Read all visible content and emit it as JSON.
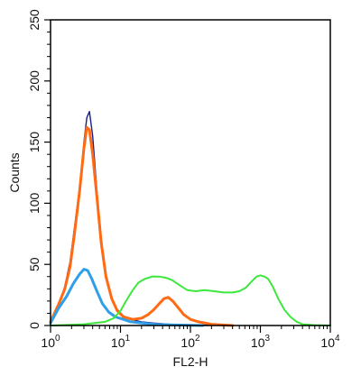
{
  "chart_data": {
    "type": "line",
    "title": "",
    "xlabel": "FL2-H",
    "ylabel": "Counts",
    "xscale": "log",
    "xlim": [
      1,
      10000
    ],
    "ylim": [
      0,
      250
    ],
    "grid": false,
    "x_ticks": [
      {
        "value": 1,
        "base": "10",
        "exp": "0"
      },
      {
        "value": 10,
        "base": "10",
        "exp": "1"
      },
      {
        "value": 100,
        "base": "10",
        "exp": "2"
      },
      {
        "value": 1000,
        "base": "10",
        "exp": "3"
      },
      {
        "value": 10000,
        "base": "10",
        "exp": "4"
      }
    ],
    "y_ticks": [
      {
        "value": 0,
        "label": "0"
      },
      {
        "value": 50,
        "label": "50"
      },
      {
        "value": 100,
        "label": "100"
      },
      {
        "value": 150,
        "label": "150"
      },
      {
        "value": 200,
        "label": "200"
      },
      {
        "value": 250,
        "label": "250"
      }
    ],
    "series": [
      {
        "color": "#1a1f8c",
        "width": 1.4,
        "points": [
          [
            1,
            2
          ],
          [
            1.3,
            15
          ],
          [
            1.6,
            32
          ],
          [
            1.9,
            52
          ],
          [
            2.2,
            80
          ],
          [
            2.6,
            112
          ],
          [
            3.0,
            150
          ],
          [
            3.3,
            170
          ],
          [
            3.6,
            175
          ],
          [
            4.0,
            155
          ],
          [
            4.6,
            110
          ],
          [
            5.3,
            72
          ],
          [
            6.2,
            42
          ],
          [
            7.5,
            22
          ],
          [
            9,
            13
          ],
          [
            11,
            8
          ],
          [
            14,
            5
          ],
          [
            20,
            3
          ],
          [
            30,
            2
          ],
          [
            50,
            1
          ],
          [
            100,
            0.5
          ],
          [
            400,
            0
          ]
        ]
      },
      {
        "color": "#ff6a12",
        "width": 3,
        "points": [
          [
            1,
            3
          ],
          [
            1.3,
            17
          ],
          [
            1.6,
            30
          ],
          [
            1.9,
            48
          ],
          [
            2.2,
            75
          ],
          [
            2.6,
            110
          ],
          [
            3.0,
            145
          ],
          [
            3.3,
            162
          ],
          [
            3.6,
            160
          ],
          [
            4.0,
            140
          ],
          [
            4.6,
            105
          ],
          [
            5.3,
            68
          ],
          [
            6.2,
            40
          ],
          [
            7.5,
            22
          ],
          [
            9,
            12
          ],
          [
            11,
            7
          ],
          [
            15,
            5
          ],
          [
            20,
            6
          ],
          [
            25,
            9
          ],
          [
            30,
            13
          ],
          [
            36,
            18
          ],
          [
            42,
            22
          ],
          [
            48,
            23
          ],
          [
            56,
            20
          ],
          [
            66,
            15
          ],
          [
            80,
            9
          ],
          [
            100,
            5
          ],
          [
            130,
            3
          ],
          [
            200,
            1
          ],
          [
            400,
            0
          ]
        ]
      },
      {
        "color": "#2f9fe8",
        "width": 3,
        "points": [
          [
            1,
            2
          ],
          [
            1.3,
            14
          ],
          [
            1.7,
            24
          ],
          [
            2.1,
            34
          ],
          [
            2.6,
            42
          ],
          [
            3.0,
            46
          ],
          [
            3.4,
            45
          ],
          [
            3.9,
            38
          ],
          [
            4.6,
            28
          ],
          [
            5.5,
            18
          ],
          [
            6.8,
            11
          ],
          [
            8.5,
            7
          ],
          [
            11,
            5
          ],
          [
            14,
            3
          ],
          [
            20,
            2
          ],
          [
            30,
            1
          ],
          [
            50,
            0.5
          ],
          [
            150,
            0
          ]
        ]
      },
      {
        "color": "#3de83d",
        "width": 2,
        "points": [
          [
            1,
            0
          ],
          [
            3,
            1
          ],
          [
            6,
            3
          ],
          [
            8,
            6
          ],
          [
            10,
            12
          ],
          [
            12,
            20
          ],
          [
            15,
            29
          ],
          [
            18,
            35
          ],
          [
            22,
            38
          ],
          [
            28,
            40
          ],
          [
            36,
            40
          ],
          [
            45,
            39
          ],
          [
            55,
            37
          ],
          [
            70,
            33
          ],
          [
            90,
            29
          ],
          [
            120,
            28
          ],
          [
            160,
            29
          ],
          [
            220,
            28
          ],
          [
            300,
            27
          ],
          [
            400,
            27
          ],
          [
            500,
            28
          ],
          [
            620,
            31
          ],
          [
            750,
            36
          ],
          [
            880,
            40
          ],
          [
            1000,
            41
          ],
          [
            1150,
            40
          ],
          [
            1300,
            38
          ],
          [
            1500,
            32
          ],
          [
            1800,
            22
          ],
          [
            2200,
            13
          ],
          [
            2700,
            7
          ],
          [
            3300,
            3
          ],
          [
            4000,
            1
          ],
          [
            6000,
            0.3
          ],
          [
            10000,
            0
          ]
        ]
      }
    ]
  }
}
